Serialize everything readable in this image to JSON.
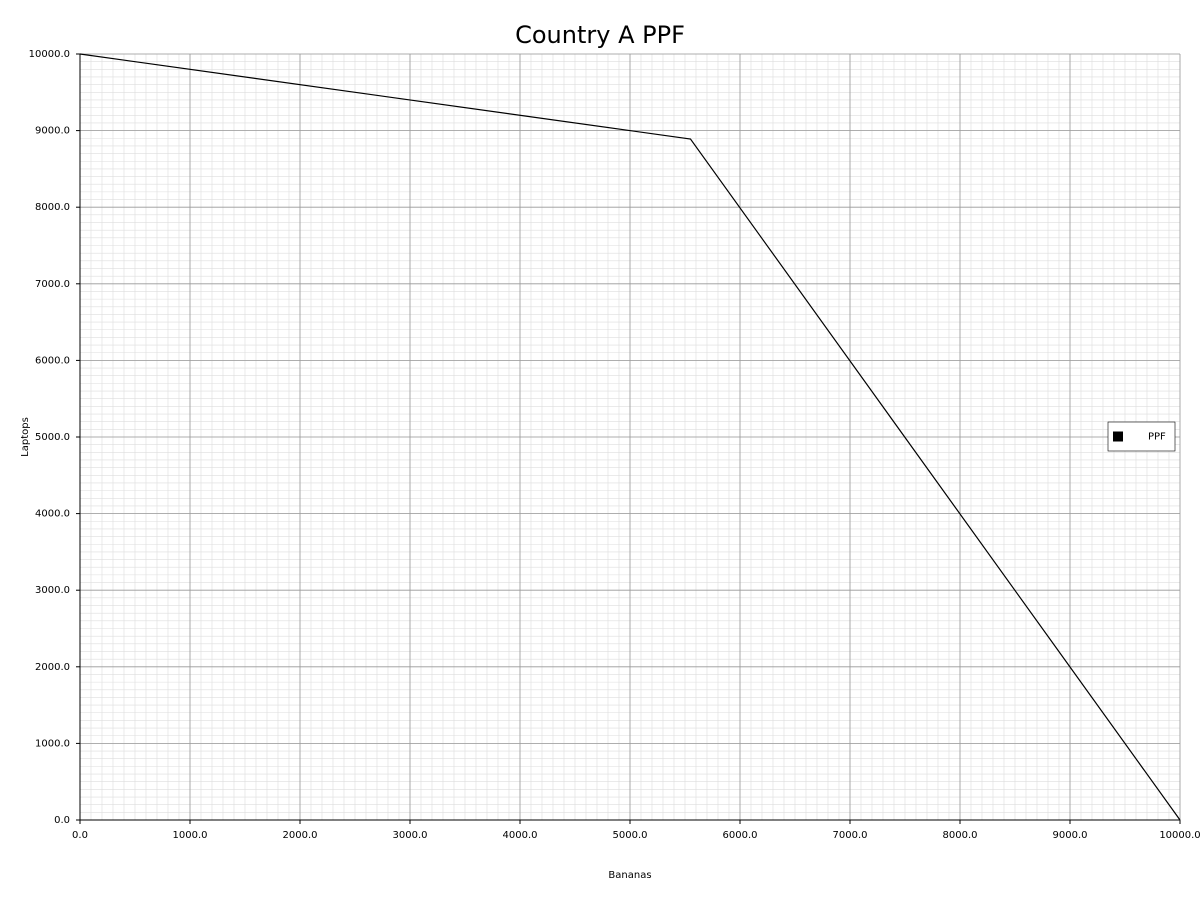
{
  "chart_data": {
    "type": "line",
    "title": "Country A PPF",
    "x_label": "Bananas",
    "y_label": "Laptops",
    "x": [
      0,
      5550,
      10000
    ],
    "series": [
      {
        "name": "PPF",
        "color": "#000000",
        "values": [
          10000,
          8890,
          0
        ]
      }
    ],
    "xlim": [
      0,
      10000
    ],
    "ylim": [
      0,
      10000
    ],
    "xticks": [
      {
        "value": 0,
        "label": "0.0"
      },
      {
        "value": 1000,
        "label": "1000.0"
      },
      {
        "value": 2000,
        "label": "2000.0"
      },
      {
        "value": 3000,
        "label": "3000.0"
      },
      {
        "value": 4000,
        "label": "4000.0"
      },
      {
        "value": 5000,
        "label": "5000.0"
      },
      {
        "value": 6000,
        "label": "6000.0"
      },
      {
        "value": 7000,
        "label": "7000.0"
      },
      {
        "value": 8000,
        "label": "8000.0"
      },
      {
        "value": 9000,
        "label": "9000.0"
      },
      {
        "value": 10000,
        "label": "10000.0"
      }
    ],
    "yticks": [
      {
        "value": 0,
        "label": "0.0"
      },
      {
        "value": 1000,
        "label": "1000.0"
      },
      {
        "value": 2000,
        "label": "2000.0"
      },
      {
        "value": 3000,
        "label": "3000.0"
      },
      {
        "value": 4000,
        "label": "4000.0"
      },
      {
        "value": 5000,
        "label": "5000.0"
      },
      {
        "value": 6000,
        "label": "6000.0"
      },
      {
        "value": 7000,
        "label": "7000.0"
      },
      {
        "value": 8000,
        "label": "8000.0"
      },
      {
        "value": 9000,
        "label": "9000.0"
      },
      {
        "value": 10000,
        "label": "10000.0"
      }
    ],
    "grid": true,
    "minor_grid": true,
    "legend": "right"
  }
}
